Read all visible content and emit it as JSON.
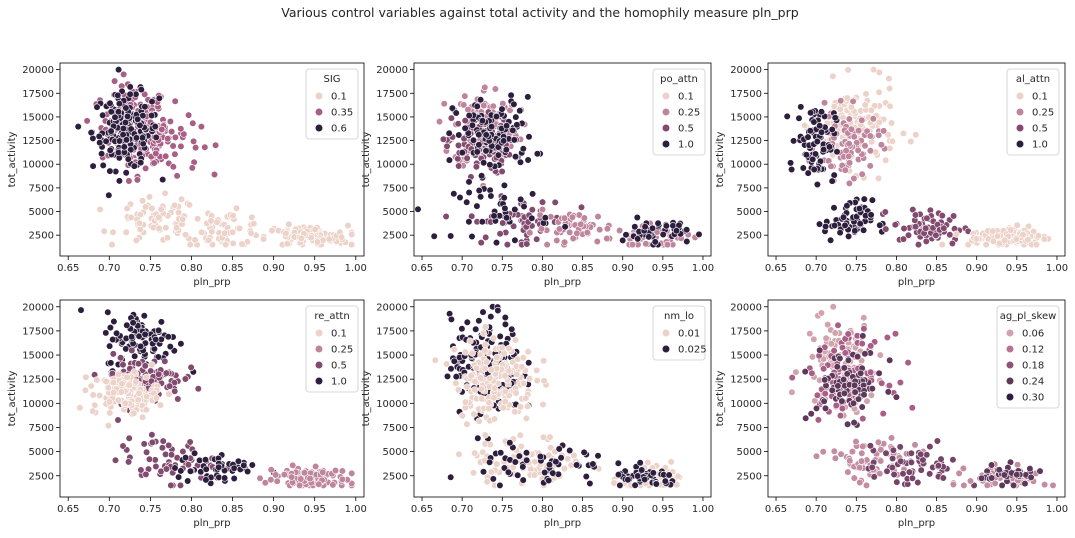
{
  "figure": {
    "title": "Various control variables against total activity and the homophily measure pln_prp"
  },
  "palette": {
    "hue_light": "#ecd2c8",
    "hue_dark": "#2d1e3e",
    "marker_edge": "#ffffff",
    "axes_edge": "#000000"
  },
  "chart_data": [
    {
      "type": "scatter",
      "xlabel": "pln_prp",
      "ylabel": "tot_activity",
      "xlim": [
        0.64,
        1.01
      ],
      "ylim": [
        300,
        20700
      ],
      "xticks": [
        "0.65",
        "0.70",
        "0.75",
        "0.80",
        "0.85",
        "0.90",
        "0.95",
        "1.00"
      ],
      "yticks": [
        "2500",
        "5000",
        "7500",
        "10000",
        "12500",
        "15000",
        "17500",
        "20000"
      ],
      "legend_title": "SIG",
      "legend_position": "top-right",
      "legend_entries": [
        "0.1",
        "0.35",
        "0.6"
      ],
      "legend_levels": [
        0.0,
        0.5,
        1.0
      ],
      "clusters": [
        {
          "x": 0.73,
          "y": 14000,
          "sx": 0.02,
          "sy": 2200,
          "n": 140,
          "level": 0.5
        },
        {
          "x": 0.76,
          "y": 12500,
          "sx": 0.025,
          "sy": 1800,
          "n": 90,
          "level": 0.5
        },
        {
          "x": 0.72,
          "y": 13500,
          "sx": 0.02,
          "sy": 2000,
          "n": 170,
          "level": 1.0
        },
        {
          "x": 0.76,
          "y": 4000,
          "sx": 0.025,
          "sy": 1200,
          "n": 70,
          "level": 0.0
        },
        {
          "x": 0.84,
          "y": 3200,
          "sx": 0.025,
          "sy": 900,
          "n": 60,
          "level": 0.0
        },
        {
          "x": 0.94,
          "y": 2300,
          "sx": 0.025,
          "sy": 600,
          "n": 100,
          "level": 0.0
        }
      ]
    },
    {
      "type": "scatter",
      "xlabel": "pln_prp",
      "ylabel": "tot_activity",
      "xlim": [
        0.64,
        1.01
      ],
      "ylim": [
        300,
        20700
      ],
      "xticks": [
        "0.65",
        "0.70",
        "0.75",
        "0.80",
        "0.85",
        "0.90",
        "0.95",
        "1.00"
      ],
      "yticks": [
        "2500",
        "5000",
        "7500",
        "10000",
        "12500",
        "15000",
        "17500",
        "20000"
      ],
      "legend_title": "po_attn",
      "legend_position": "top-right",
      "legend_entries": [
        "0.1",
        "0.25",
        "0.5",
        "1.0"
      ],
      "legend_levels": [
        0.0,
        0.33,
        0.66,
        1.0
      ],
      "clusters": [
        {
          "x": 0.73,
          "y": 14000,
          "sx": 0.02,
          "sy": 2200,
          "n": 120,
          "level": 0.33
        },
        {
          "x": 0.72,
          "y": 12000,
          "sx": 0.02,
          "sy": 1500,
          "n": 90,
          "level": 0.66
        },
        {
          "x": 0.74,
          "y": 13000,
          "sx": 0.025,
          "sy": 2000,
          "n": 110,
          "level": 1.0
        },
        {
          "x": 0.77,
          "y": 4000,
          "sx": 0.03,
          "sy": 1200,
          "n": 60,
          "level": 0.66
        },
        {
          "x": 0.84,
          "y": 3200,
          "sx": 0.025,
          "sy": 900,
          "n": 50,
          "level": 0.33
        },
        {
          "x": 0.75,
          "y": 5000,
          "sx": 0.03,
          "sy": 1500,
          "n": 40,
          "level": 1.0
        },
        {
          "x": 0.94,
          "y": 2300,
          "sx": 0.025,
          "sy": 600,
          "n": 50,
          "level": 0.33
        },
        {
          "x": 0.94,
          "y": 2800,
          "sx": 0.02,
          "sy": 700,
          "n": 50,
          "level": 1.0
        }
      ]
    },
    {
      "type": "scatter",
      "xlabel": "pln_prp",
      "ylabel": "tot_activity",
      "xlim": [
        0.64,
        1.01
      ],
      "ylim": [
        300,
        20700
      ],
      "xticks": [
        "0.65",
        "0.70",
        "0.75",
        "0.80",
        "0.85",
        "0.90",
        "0.95",
        "1.00"
      ],
      "yticks": [
        "2500",
        "5000",
        "7500",
        "10000",
        "12500",
        "15000",
        "17500",
        "20000"
      ],
      "legend_title": "al_attn",
      "legend_position": "top-right",
      "legend_entries": [
        "0.1",
        "0.25",
        "0.5",
        "1.0"
      ],
      "legend_levels": [
        0.0,
        0.33,
        0.66,
        1.0
      ],
      "clusters": [
        {
          "x": 0.75,
          "y": 14000,
          "sx": 0.025,
          "sy": 2200,
          "n": 130,
          "level": 0.0
        },
        {
          "x": 0.74,
          "y": 12000,
          "sx": 0.02,
          "sy": 1800,
          "n": 80,
          "level": 0.33
        },
        {
          "x": 0.7,
          "y": 12500,
          "sx": 0.012,
          "sy": 2000,
          "n": 90,
          "level": 1.0
        },
        {
          "x": 0.74,
          "y": 4000,
          "sx": 0.015,
          "sy": 1100,
          "n": 60,
          "level": 1.0
        },
        {
          "x": 0.84,
          "y": 3300,
          "sx": 0.022,
          "sy": 900,
          "n": 70,
          "level": 0.66
        },
        {
          "x": 0.94,
          "y": 2300,
          "sx": 0.025,
          "sy": 600,
          "n": 100,
          "level": 0.0
        }
      ]
    },
    {
      "type": "scatter",
      "xlabel": "pln_prp",
      "ylabel": "tot_activity",
      "xlim": [
        0.64,
        1.01
      ],
      "ylim": [
        300,
        20700
      ],
      "xticks": [
        "0.65",
        "0.70",
        "0.75",
        "0.80",
        "0.85",
        "0.90",
        "0.95",
        "1.00"
      ],
      "yticks": [
        "2500",
        "5000",
        "7500",
        "10000",
        "12500",
        "15000",
        "17500",
        "20000"
      ],
      "legend_title": "re_attn",
      "legend_position": "top-right",
      "legend_entries": [
        "0.1",
        "0.25",
        "0.5",
        "1.0"
      ],
      "legend_levels": [
        0.0,
        0.33,
        0.66,
        1.0
      ],
      "clusters": [
        {
          "x": 0.74,
          "y": 16500,
          "sx": 0.022,
          "sy": 1500,
          "n": 100,
          "level": 1.0
        },
        {
          "x": 0.74,
          "y": 12500,
          "sx": 0.025,
          "sy": 1200,
          "n": 120,
          "level": 0.66
        },
        {
          "x": 0.72,
          "y": 11000,
          "sx": 0.02,
          "sy": 1100,
          "n": 120,
          "level": 0.0
        },
        {
          "x": 0.77,
          "y": 4000,
          "sx": 0.03,
          "sy": 1200,
          "n": 60,
          "level": 0.66
        },
        {
          "x": 0.83,
          "y": 3200,
          "sx": 0.025,
          "sy": 900,
          "n": 50,
          "level": 1.0
        },
        {
          "x": 0.94,
          "y": 2300,
          "sx": 0.025,
          "sy": 600,
          "n": 100,
          "level": 0.33
        }
      ]
    },
    {
      "type": "scatter",
      "xlabel": "pln_prp",
      "ylabel": "tot_activity",
      "xlim": [
        0.64,
        1.01
      ],
      "ylim": [
        300,
        20700
      ],
      "xticks": [
        "0.65",
        "0.70",
        "0.75",
        "0.80",
        "0.85",
        "0.90",
        "0.95",
        "1.00"
      ],
      "yticks": [
        "2500",
        "5000",
        "7500",
        "10000",
        "12500",
        "15000",
        "17500",
        "20000"
      ],
      "legend_title": "nm_lo",
      "legend_position": "top-right",
      "legend_entries": [
        "0.01",
        "0.025"
      ],
      "legend_levels": [
        0.0,
        1.0
      ],
      "clusters": [
        {
          "x": 0.73,
          "y": 14000,
          "sx": 0.022,
          "sy": 2500,
          "n": 170,
          "level": 1.0
        },
        {
          "x": 0.74,
          "y": 12500,
          "sx": 0.025,
          "sy": 2200,
          "n": 170,
          "level": 0.0
        },
        {
          "x": 0.78,
          "y": 4000,
          "sx": 0.035,
          "sy": 1300,
          "n": 90,
          "level": 0.0
        },
        {
          "x": 0.8,
          "y": 3500,
          "sx": 0.04,
          "sy": 1300,
          "n": 60,
          "level": 1.0
        },
        {
          "x": 0.94,
          "y": 2300,
          "sx": 0.025,
          "sy": 600,
          "n": 60,
          "level": 0.0
        },
        {
          "x": 0.93,
          "y": 2200,
          "sx": 0.02,
          "sy": 500,
          "n": 50,
          "level": 1.0
        }
      ]
    },
    {
      "type": "scatter",
      "xlabel": "pln_prp",
      "ylabel": "tot_activity",
      "xlim": [
        0.64,
        1.01
      ],
      "ylim": [
        300,
        20700
      ],
      "xticks": [
        "0.65",
        "0.70",
        "0.75",
        "0.80",
        "0.85",
        "0.90",
        "0.95",
        "1.00"
      ],
      "yticks": [
        "2500",
        "5000",
        "7500",
        "10000",
        "12500",
        "15000",
        "17500",
        "20000"
      ],
      "legend_title": "ag_pl_skew",
      "legend_position": "top-right",
      "legend_entries": [
        "0.06",
        "0.12",
        "0.18",
        "0.24",
        "0.30"
      ],
      "legend_levels": [
        0.2,
        0.4,
        0.6,
        0.8,
        1.0
      ],
      "clusters": [
        {
          "x": 0.73,
          "y": 14000,
          "sx": 0.022,
          "sy": 2500,
          "n": 120,
          "level": 0.2
        },
        {
          "x": 0.74,
          "y": 13000,
          "sx": 0.025,
          "sy": 2000,
          "n": 90,
          "level": 0.5
        },
        {
          "x": 0.74,
          "y": 12000,
          "sx": 0.022,
          "sy": 1800,
          "n": 80,
          "level": 0.8
        },
        {
          "x": 0.77,
          "y": 4000,
          "sx": 0.03,
          "sy": 1200,
          "n": 70,
          "level": 0.3
        },
        {
          "x": 0.82,
          "y": 3500,
          "sx": 0.03,
          "sy": 1100,
          "n": 60,
          "level": 0.7
        },
        {
          "x": 0.94,
          "y": 2300,
          "sx": 0.025,
          "sy": 600,
          "n": 60,
          "level": 0.3
        },
        {
          "x": 0.94,
          "y": 2600,
          "sx": 0.02,
          "sy": 500,
          "n": 50,
          "level": 0.8
        }
      ]
    }
  ]
}
